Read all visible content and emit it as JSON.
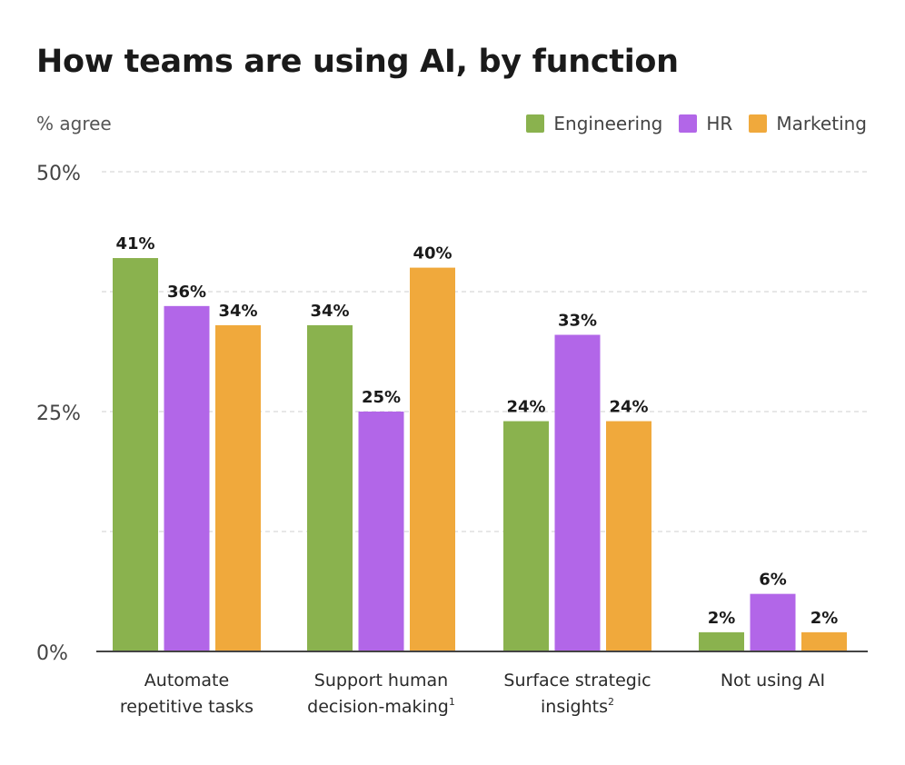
{
  "chart_data": {
    "type": "bar",
    "title": "How teams are using AI, by function",
    "ylabel": "% agree",
    "xlabel": "",
    "ylim": [
      0,
      50
    ],
    "yticks": [
      {
        "value": 0,
        "label": "0%"
      },
      {
        "value": 25,
        "label": "25%"
      },
      {
        "value": 50,
        "label": "50%"
      }
    ],
    "gridlines": [
      12.5,
      25,
      37.5,
      50
    ],
    "grid": true,
    "legend_position": "top-right",
    "categories": [
      {
        "line1": "Automate",
        "line2": "repetitive tasks",
        "sup": ""
      },
      {
        "line1": "Support human",
        "line2": "decision-making",
        "sup": "1"
      },
      {
        "line1": "Surface strategic",
        "line2": "insights",
        "sup": "2"
      },
      {
        "line1": "Not using AI",
        "line2": "",
        "sup": ""
      }
    ],
    "series": [
      {
        "name": "Engineering",
        "color": "#8ab24e",
        "values": [
          41,
          34,
          24,
          2
        ],
        "labels": [
          "41%",
          "34%",
          "24%",
          "2%"
        ]
      },
      {
        "name": "HR",
        "color": "#b266e8",
        "values": [
          36,
          25,
          33,
          6
        ],
        "labels": [
          "36%",
          "25%",
          "33%",
          "6%"
        ]
      },
      {
        "name": "Marketing",
        "color": "#f0a93c",
        "values": [
          34,
          40,
          24,
          2
        ],
        "labels": [
          "34%",
          "40%",
          "24%",
          "2%"
        ]
      }
    ]
  }
}
